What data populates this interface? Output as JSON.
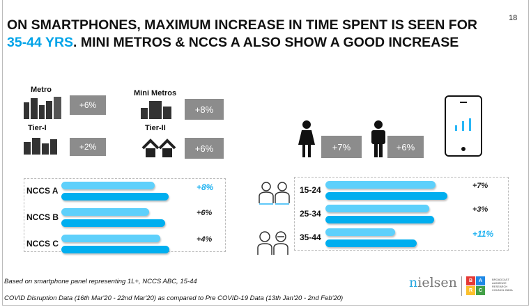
{
  "page_number": "18",
  "title": {
    "line1": "ON SMARTPHONES, MAXIMUM INCREASE IN TIME SPENT IS SEEN FOR",
    "highlight": "35-44 YRS",
    "line2_rest": ". MINI METROS & NCCS A ALSO SHOW A GOOD INCREASE"
  },
  "towns": [
    {
      "label": "Metro",
      "value": "+6%"
    },
    {
      "label": "Mini Metros",
      "value": "+8%"
    },
    {
      "label": "Tier-I",
      "value": "+2%"
    },
    {
      "label": "Tier-II",
      "value": "+6%"
    }
  ],
  "gender": [
    {
      "label": "female",
      "value": "+7%"
    },
    {
      "label": "male",
      "value": "+6%"
    }
  ],
  "nccs": [
    {
      "label": "NCCS A",
      "pre": 0.84,
      "post": 0.96,
      "value": "+8%",
      "highlight": true
    },
    {
      "label": "NCCS B",
      "pre": 0.79,
      "post": 0.93,
      "value": "+6%",
      "highlight": false
    },
    {
      "label": "NCCS C",
      "pre": 0.89,
      "post": 0.97,
      "value": "+4%",
      "highlight": false
    }
  ],
  "age": [
    {
      "label": "15-24",
      "pre": 0.9,
      "post": 1.0,
      "value": "+7%",
      "highlight": false
    },
    {
      "label": "25-34",
      "pre": 0.85,
      "post": 0.89,
      "value": "+3%",
      "highlight": false
    },
    {
      "label": "35-44",
      "pre": 0.57,
      "post": 0.75,
      "value": "+11%",
      "highlight": true
    }
  ],
  "footnotes": [
    "Based on smartphone panel representing 1L+, NCCS ABC, 15-44",
    "COVID Disruption Data (16th Mar'20 - 22nd Mar'20) as compared to Pre COVID-19 Data (13th Jan'20 - 2nd Feb'20)"
  ],
  "logos": {
    "nielsen": "nielsen",
    "barc": [
      "B",
      "A",
      "R",
      "C"
    ],
    "barc_text": "BROADCAST AUDIENCE RESEARCH COUNCIL INDIA"
  },
  "colors": {
    "accent": "#00a3e8",
    "bar_pre": "#5ed0fb",
    "bar_post": "#00aeef",
    "box": "#8c8c8c"
  }
}
